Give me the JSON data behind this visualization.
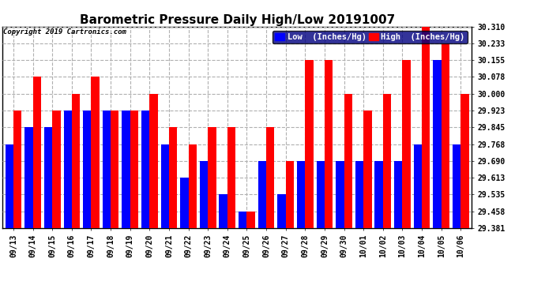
{
  "title": "Barometric Pressure Daily High/Low 20191007",
  "copyright": "Copyright 2019 Cartronics.com",
  "legend_low": "Low  (Inches/Hg)",
  "legend_high": "High  (Inches/Hg)",
  "dates": [
    "09/13",
    "09/14",
    "09/15",
    "09/16",
    "09/17",
    "09/18",
    "09/19",
    "09/20",
    "09/21",
    "09/22",
    "09/23",
    "09/24",
    "09/25",
    "09/26",
    "09/27",
    "09/28",
    "09/29",
    "09/30",
    "10/01",
    "10/02",
    "10/03",
    "10/04",
    "10/05",
    "10/06"
  ],
  "low": [
    29.768,
    29.845,
    29.845,
    29.923,
    29.923,
    29.923,
    29.923,
    29.923,
    29.768,
    29.613,
    29.69,
    29.535,
    29.458,
    29.69,
    29.535,
    29.69,
    29.69,
    29.69,
    29.69,
    29.69,
    29.69,
    29.768,
    30.155,
    29.768
  ],
  "high": [
    29.923,
    30.078,
    29.923,
    30.0,
    30.078,
    29.923,
    29.923,
    30.0,
    29.845,
    29.768,
    29.845,
    29.845,
    29.458,
    29.845,
    29.69,
    30.155,
    30.155,
    30.0,
    29.923,
    30.0,
    30.155,
    30.31,
    30.233,
    30.0
  ],
  "ylim_min": 29.381,
  "ylim_max": 30.31,
  "yticks": [
    29.381,
    29.458,
    29.535,
    29.613,
    29.69,
    29.768,
    29.845,
    29.923,
    30.0,
    30.078,
    30.155,
    30.233,
    30.31
  ],
  "bar_color_low": "#0000ff",
  "bar_color_high": "#ff0000",
  "bg_color": "#ffffff",
  "grid_color": "#b0b0b0",
  "title_fontsize": 11,
  "tick_fontsize": 7,
  "legend_fontsize": 7.5,
  "copyright_fontsize": 6.5
}
